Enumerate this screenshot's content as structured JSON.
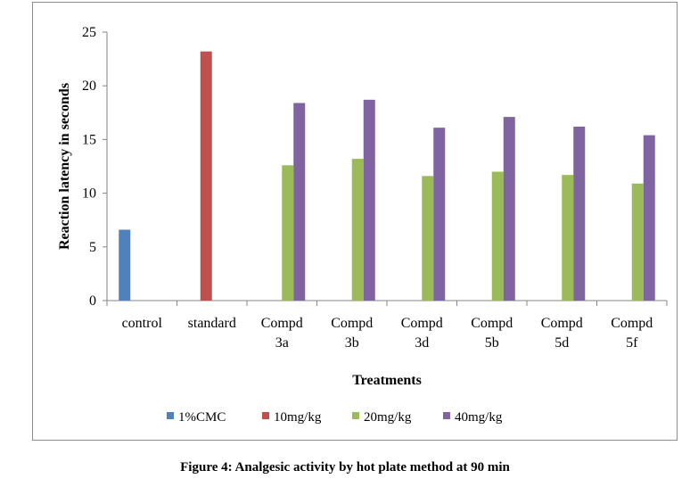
{
  "caption": "Figure 4: Analgesic activity by hot plate method at 90 min",
  "chart_data": {
    "type": "bar",
    "title": "",
    "xlabel": "Treatments",
    "ylabel": "Reaction latency in seconds",
    "ylim": [
      0,
      25
    ],
    "yticks": [
      0,
      5,
      10,
      15,
      20,
      25
    ],
    "grid": false,
    "legend_position": "bottom",
    "categories": [
      [
        "control"
      ],
      [
        "standard"
      ],
      [
        "Compd",
        "3a"
      ],
      [
        "Compd",
        "3b"
      ],
      [
        "Compd",
        "3d"
      ],
      [
        "Compd",
        "5b"
      ],
      [
        "Compd",
        "5d"
      ],
      [
        "Compd",
        "5f"
      ]
    ],
    "series": [
      {
        "name": "1%CMC",
        "color": "#4f81bd",
        "values": [
          6.6,
          null,
          null,
          null,
          null,
          null,
          null,
          null
        ]
      },
      {
        "name": "10mg/kg",
        "color": "#c0504d",
        "values": [
          null,
          23.2,
          null,
          null,
          null,
          null,
          null,
          null
        ]
      },
      {
        "name": "20mg/kg",
        "color": "#9bbb59",
        "values": [
          null,
          null,
          12.6,
          13.2,
          11.6,
          12.0,
          11.7,
          10.9
        ]
      },
      {
        "name": "40mg/kg",
        "color": "#8064a2",
        "values": [
          null,
          null,
          18.4,
          18.7,
          16.1,
          17.1,
          16.2,
          15.4
        ]
      }
    ]
  }
}
